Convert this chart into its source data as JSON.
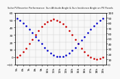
{
  "title": "Solar PV/Inverter Performance  Sun Altitude Angle & Sun Incidence Angle on PV Panels",
  "background_color": "#f8f8f8",
  "grid_color": "#cccccc",
  "x_values": [
    5.0,
    5.5,
    6.0,
    6.5,
    7.0,
    7.5,
    8.0,
    8.5,
    9.0,
    9.5,
    10.0,
    10.5,
    11.0,
    11.5,
    12.0,
    12.5,
    13.0,
    13.5,
    14.0,
    14.5,
    15.0,
    15.5,
    16.0,
    16.5,
    17.0,
    17.5,
    18.0,
    18.5,
    19.0
  ],
  "altitude_y": [
    0,
    3,
    7,
    12,
    18,
    24,
    30,
    36,
    41,
    45,
    48,
    50,
    51,
    50,
    48,
    45,
    41,
    36,
    30,
    24,
    18,
    12,
    7,
    3,
    0,
    -2,
    -3,
    -2,
    0
  ],
  "incidence_y": [
    89,
    85,
    80,
    74,
    68,
    61,
    54,
    47,
    40,
    33,
    27,
    22,
    18,
    16,
    15,
    16,
    18,
    22,
    27,
    33,
    40,
    47,
    54,
    61,
    68,
    74,
    80,
    85,
    89
  ],
  "altitude_color": "#cc0000",
  "incidence_color": "#0000cc",
  "left_ylim": [
    -10,
    60
  ],
  "right_ylim": [
    0,
    100
  ],
  "left_yticks": [
    -10,
    0,
    10,
    20,
    30,
    40,
    50,
    60
  ],
  "right_yticks": [
    0,
    10,
    20,
    30,
    40,
    50,
    60,
    70,
    80,
    90,
    100
  ],
  "x_tick_values": [
    5,
    6,
    7,
    8,
    9,
    10,
    11,
    12,
    13,
    14,
    15,
    16,
    17,
    18,
    19
  ],
  "x_tick_labels": [
    "5h",
    "6h",
    "7h",
    "8h",
    "9h",
    "10h",
    "11h",
    "12h",
    "13h",
    "14h",
    "15h",
    "16h",
    "17h",
    "18h",
    "19h"
  ],
  "marker_size": 1.8,
  "title_fontsize": 2.5,
  "tick_fontsize": 3.2
}
